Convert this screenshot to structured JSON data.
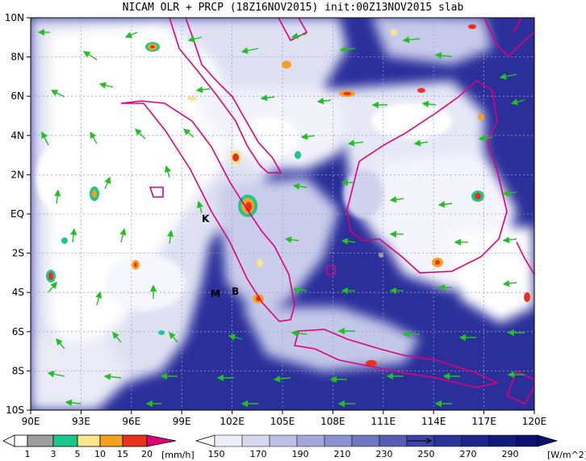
{
  "title": "NICAM OLR + PRCP (18Z16NOV2015) init:00Z13NOV2015 slab",
  "map": {
    "lon_range": [
      90,
      120
    ],
    "lat_range": [
      -10,
      10
    ],
    "lon_ticks": [
      "90E",
      "93E",
      "96E",
      "99E",
      "102E",
      "105E",
      "108E",
      "111E",
      "114E",
      "117E",
      "120E"
    ],
    "lat_ticks": [
      "10N",
      "8N",
      "6N",
      "4N",
      "2N",
      "EQ",
      "2S",
      "4S",
      "6S",
      "8S",
      "10S"
    ],
    "markers": [
      {
        "label": "K",
        "lon": 100.8,
        "lat": -0.2
      },
      {
        "label": "M",
        "lon": 100.4,
        "lat": -4.0
      },
      {
        "label": "B",
        "lon": 101.7,
        "lat": -3.8
      }
    ],
    "colors": {
      "ocean": "#2a2f9a",
      "coast": "#e0007a",
      "wind_arrow": "#22c022",
      "grid": "#9aa0c8"
    }
  },
  "precip_colorbar": {
    "labels": [
      "1",
      "3",
      "5",
      "10",
      "15",
      "20"
    ],
    "unit": "[mm/h]",
    "colors": [
      "#ffffff",
      "#9e9e9e",
      "#19c98c",
      "#fbe58a",
      "#f7a21e",
      "#e8321e",
      "#e0007a"
    ]
  },
  "olr_colorbar": {
    "labels": [
      "150",
      "170",
      "190",
      "210",
      "230",
      "250",
      "270",
      "290"
    ],
    "unit": "[W/m^2]",
    "colors": [
      "#ffffff",
      "#eeeefa",
      "#d6d8f0",
      "#bcc0e6",
      "#a2a8dc",
      "#8a90d0",
      "#6e76c2",
      "#545cb4",
      "#3d43a6",
      "#2c3398",
      "#1f268a",
      "#141a7c",
      "#0c1070"
    ]
  }
}
